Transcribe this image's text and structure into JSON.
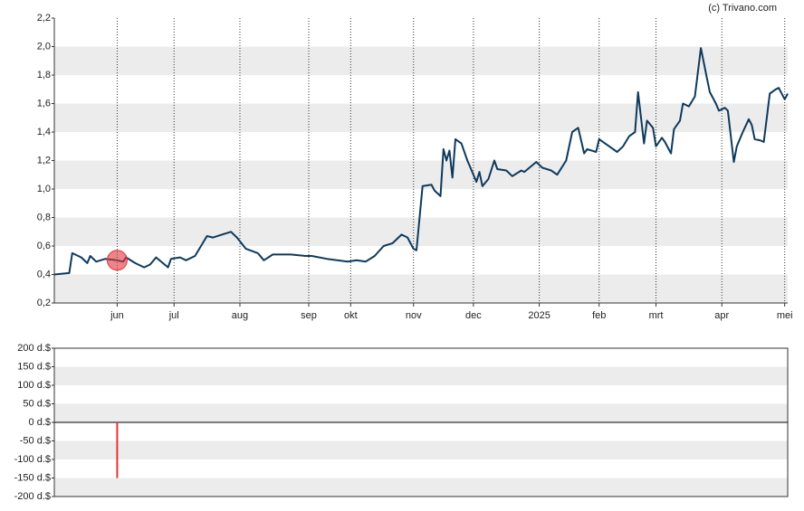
{
  "credit": "(c) Trivano.com",
  "chart_data": [
    {
      "type": "line",
      "x": [
        0,
        5,
        6,
        9,
        11,
        12,
        14,
        17,
        21,
        23,
        24,
        27,
        30,
        32,
        34,
        38,
        39,
        42,
        44,
        47,
        49,
        51,
        53,
        56,
        59,
        61,
        64,
        68,
        70,
        73,
        79,
        84,
        86,
        91,
        98,
        101,
        104,
        107,
        110,
        113,
        116,
        118,
        120,
        121,
        123,
        126,
        127,
        129,
        130,
        131,
        132,
        133,
        134,
        136,
        138,
        139,
        141,
        142,
        143,
        145,
        147,
        148,
        151,
        153,
        156,
        157,
        161,
        163,
        166,
        168,
        171,
        173,
        175,
        177,
        178,
        181,
        182,
        184,
        188,
        190,
        192,
        194,
        195,
        197,
        198,
        200,
        201,
        203,
        204,
        206,
        207,
        209,
        210,
        212,
        214,
        216,
        218,
        219,
        221,
        222,
        224,
        225,
        227,
        228,
        230,
        232,
        233,
        234,
        236,
        237,
        239,
        241,
        242,
        244,
        245
      ],
      "values": [
        0.4,
        0.41,
        0.55,
        0.52,
        0.48,
        0.53,
        0.49,
        0.51,
        0.5,
        0.49,
        0.52,
        0.48,
        0.45,
        0.47,
        0.52,
        0.45,
        0.51,
        0.52,
        0.5,
        0.53,
        0.6,
        0.67,
        0.66,
        0.68,
        0.7,
        0.66,
        0.58,
        0.55,
        0.5,
        0.54,
        0.54,
        0.53,
        0.53,
        0.51,
        0.49,
        0.5,
        0.49,
        0.53,
        0.6,
        0.62,
        0.68,
        0.66,
        0.58,
        0.57,
        1.02,
        1.03,
        0.99,
        0.95,
        1.28,
        1.2,
        1.27,
        1.08,
        1.35,
        1.32,
        1.2,
        1.15,
        1.05,
        1.12,
        1.02,
        1.07,
        1.2,
        1.14,
        1.13,
        1.09,
        1.13,
        1.12,
        1.19,
        1.15,
        1.13,
        1.1,
        1.2,
        1.4,
        1.43,
        1.25,
        1.28,
        1.26,
        1.35,
        1.32,
        1.26,
        1.3,
        1.37,
        1.4,
        1.68,
        1.32,
        1.48,
        1.43,
        1.3,
        1.36,
        1.33,
        1.25,
        1.42,
        1.48,
        1.6,
        1.58,
        1.65,
        1.99,
        1.78,
        1.68,
        1.6,
        1.55,
        1.57,
        1.55,
        1.19,
        1.3,
        1.4,
        1.49,
        1.45,
        1.35,
        1.34,
        1.33,
        1.67,
        1.7,
        1.71,
        1.63,
        1.67
      ],
      "color": "#0e3a5c",
      "markers": {
        "x": [
          21
        ],
        "values": [
          0.5
        ],
        "color": "#e0343a"
      },
      "xlim": [
        0,
        245
      ],
      "xticks": [
        {
          "value": 21,
          "label": "jun"
        },
        {
          "value": 40,
          "label": "jul"
        },
        {
          "value": 62,
          "label": "aug"
        },
        {
          "value": 85,
          "label": "sep"
        },
        {
          "value": 99,
          "label": "okt"
        },
        {
          "value": 120,
          "label": "nov"
        },
        {
          "value": 140,
          "label": "dec"
        },
        {
          "value": 162,
          "label": "2025"
        },
        {
          "value": 182,
          "label": "feb"
        },
        {
          "value": 201,
          "label": "mrt"
        },
        {
          "value": 223,
          "label": "apr"
        },
        {
          "value": 244,
          "label": "mei"
        }
      ],
      "ylim": [
        0.2,
        2.2
      ],
      "yticks": [
        {
          "value": 0.2,
          "label": "0,2"
        },
        {
          "value": 0.4,
          "label": "0,4"
        },
        {
          "value": 0.6,
          "label": "0,6"
        },
        {
          "value": 0.8,
          "label": "0,8"
        },
        {
          "value": 1.0,
          "label": "1,0"
        },
        {
          "value": 1.2,
          "label": "1,2"
        },
        {
          "value": 1.4,
          "label": "1,4"
        },
        {
          "value": 1.6,
          "label": "1,6"
        },
        {
          "value": 1.8,
          "label": "1,8"
        },
        {
          "value": 2.0,
          "label": "2,0"
        },
        {
          "value": 2.2,
          "label": "2,2"
        }
      ],
      "grid": true
    },
    {
      "type": "bar",
      "x": [
        21
      ],
      "values": [
        -150
      ],
      "color": "#e0343a",
      "xlim": [
        0,
        245
      ],
      "ylim": [
        -200,
        200
      ],
      "yticks": [
        {
          "value": -200,
          "label": "-200 d.$"
        },
        {
          "value": -150,
          "label": "-150 d.$"
        },
        {
          "value": -100,
          "label": "-100 d.$"
        },
        {
          "value": -50,
          "label": "-50 d.$"
        },
        {
          "value": 0,
          "label": "0 d.$"
        },
        {
          "value": 50,
          "label": "50 d.$"
        },
        {
          "value": 100,
          "label": "100 d.$"
        },
        {
          "value": 150,
          "label": "150 d.$"
        },
        {
          "value": 200,
          "label": "200 d.$"
        }
      ],
      "grid": true
    }
  ]
}
